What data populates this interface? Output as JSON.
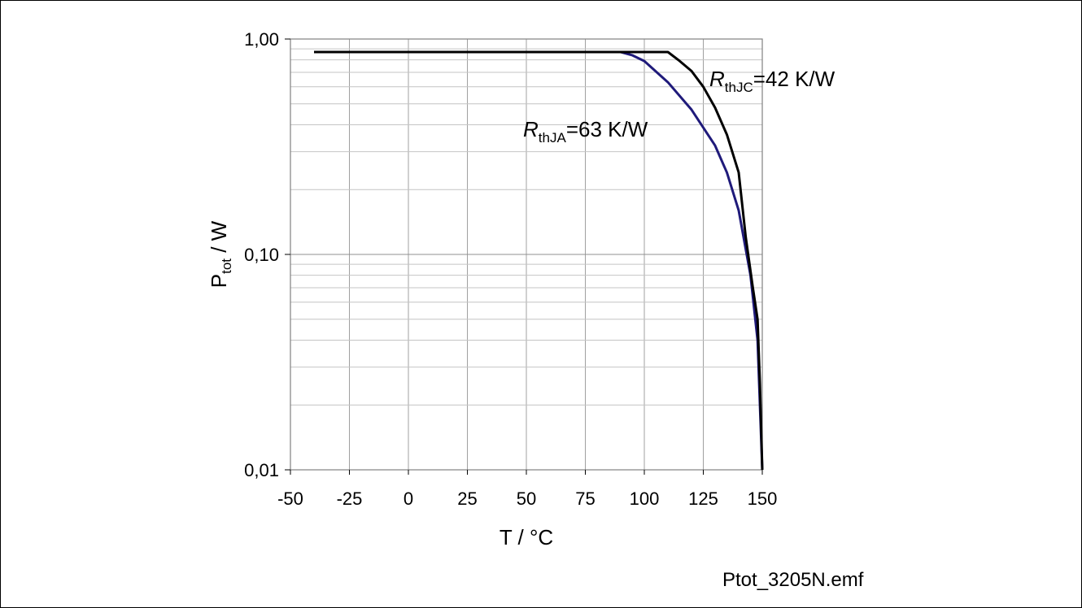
{
  "chart_data": {
    "type": "line",
    "x_axis": {
      "label": "T / °C",
      "min": -50,
      "max": 150,
      "ticks": [
        -50,
        -25,
        0,
        25,
        50,
        75,
        100,
        125,
        150
      ],
      "tick_labels": [
        "-50",
        "-25",
        "0",
        "25",
        "50",
        "75",
        "100",
        "125",
        "150"
      ]
    },
    "y_axis": {
      "label_main": "P",
      "label_sub": "tot",
      "label_rest": " / W",
      "scale": "log",
      "min": 0.01,
      "max": 1.0,
      "ticks": [
        0.01,
        0.1,
        1.0
      ],
      "tick_labels": [
        "0,01",
        "0,10",
        "1,00"
      ]
    },
    "grid": true,
    "series": [
      {
        "name_main": "R",
        "name_sub": "thJC",
        "name_rest": "=42 K/W",
        "color": "#000000",
        "x": [
          -40,
          110,
          115,
          120,
          125,
          130,
          135,
          140,
          143,
          146,
          148,
          149,
          150
        ],
        "y": [
          0.87,
          0.87,
          0.79,
          0.71,
          0.6,
          0.48,
          0.36,
          0.24,
          0.12,
          0.07,
          0.05,
          0.025,
          0.01
        ]
      },
      {
        "name_main": "R",
        "name_sub": "thJA",
        "name_rest": "=63 K/W",
        "color": "#1f1a7a",
        "x": [
          -40,
          90,
          95,
          100,
          110,
          120,
          130,
          135,
          140,
          145,
          148,
          150
        ],
        "y": [
          0.87,
          0.87,
          0.84,
          0.79,
          0.63,
          0.47,
          0.32,
          0.24,
          0.16,
          0.08,
          0.04,
          0.01
        ]
      }
    ],
    "file_name": "Ptot_3205N.emf"
  }
}
